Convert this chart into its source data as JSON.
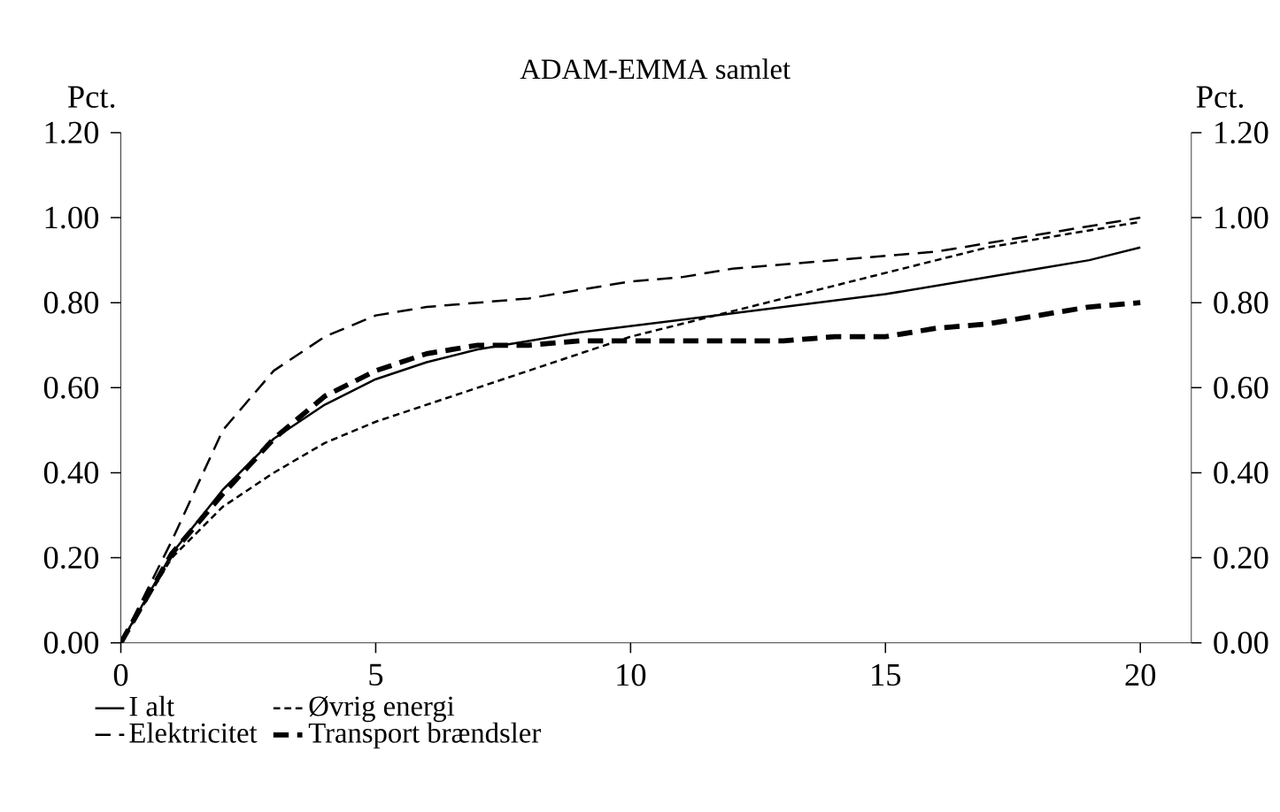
{
  "chart_data": {
    "type": "line",
    "title": "ADAM-EMMA samlet",
    "ylabel": "Pct.",
    "y2label": "Pct.",
    "x": [
      0,
      1,
      2,
      3,
      4,
      5,
      6,
      7,
      8,
      9,
      10,
      11,
      12,
      13,
      14,
      15,
      16,
      17,
      18,
      19,
      20
    ],
    "xlim": [
      0,
      21
    ],
    "xticks": [
      0,
      5,
      10,
      15,
      20
    ],
    "ylim": [
      0,
      1.2
    ],
    "yticks": [
      {
        "value": 0,
        "label": "0.00"
      },
      {
        "value": 0.2,
        "label": "0.20"
      },
      {
        "value": 0.4,
        "label": "0.40"
      },
      {
        "value": 0.6,
        "label": "0.60"
      },
      {
        "value": 0.8,
        "label": "0.80"
      },
      {
        "value": 1.0,
        "label": "1.00"
      },
      {
        "value": 1.2,
        "label": "1.20"
      }
    ],
    "y2lim": [
      0,
      1.2
    ],
    "y2ticks": [
      {
        "value": 0,
        "label": "0.00"
      },
      {
        "value": 0.2,
        "label": "0.20"
      },
      {
        "value": 0.4,
        "label": "0.40"
      },
      {
        "value": 0.6,
        "label": "0.60"
      },
      {
        "value": 0.8,
        "label": "0.80"
      },
      {
        "value": 1.0,
        "label": "1.00"
      },
      {
        "value": 1.2,
        "label": "1.20"
      }
    ],
    "grid": false,
    "legend": "bottom",
    "marker": "none",
    "series": [
      {
        "name": "I alt",
        "color": "#000000",
        "line_style": "solid",
        "values": [
          0,
          0.21,
          0.36,
          0.48,
          0.56,
          0.62,
          0.66,
          0.69,
          0.71,
          0.73,
          0.745,
          0.76,
          0.775,
          0.79,
          0.805,
          0.82,
          0.84,
          0.86,
          0.88,
          0.9,
          0.93
        ]
      },
      {
        "name": "Øvrig energi",
        "color": "#000000",
        "line_style": "dotted",
        "values": [
          0,
          0.2,
          0.32,
          0.4,
          0.47,
          0.52,
          0.56,
          0.6,
          0.64,
          0.68,
          0.72,
          0.75,
          0.78,
          0.81,
          0.84,
          0.87,
          0.9,
          0.93,
          0.95,
          0.97,
          0.99
        ]
      },
      {
        "name": "Elektricitet",
        "color": "#000000",
        "line_style": "dashed",
        "values": [
          0,
          0.24,
          0.5,
          0.64,
          0.72,
          0.77,
          0.79,
          0.8,
          0.81,
          0.83,
          0.85,
          0.86,
          0.88,
          0.89,
          0.9,
          0.91,
          0.92,
          0.94,
          0.96,
          0.98,
          1.0
        ]
      },
      {
        "name": "Transport brændsler",
        "color": "#000000",
        "line_style": "dashed",
        "values": [
          0,
          0.21,
          0.35,
          0.48,
          0.58,
          0.64,
          0.68,
          0.7,
          0.7,
          0.71,
          0.71,
          0.71,
          0.71,
          0.71,
          0.72,
          0.72,
          0.74,
          0.75,
          0.77,
          0.79,
          0.8
        ]
      }
    ]
  }
}
